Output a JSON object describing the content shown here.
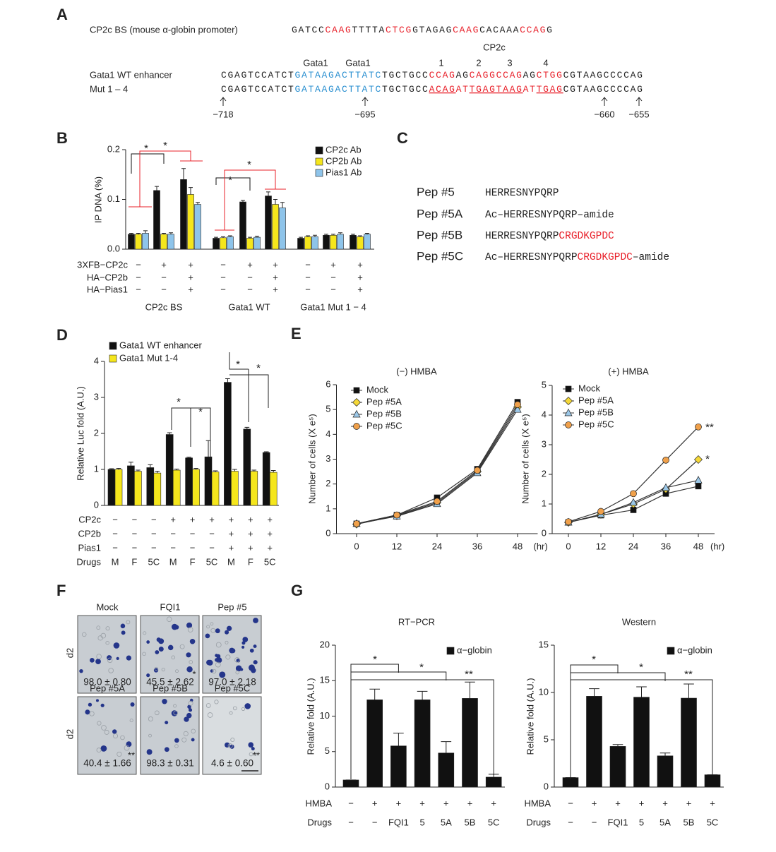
{
  "panel_a": {
    "letter": "A",
    "cp2c_bs": {
      "label": "CP2c BS (mouse α-globin promoter)",
      "segments": [
        {
          "text": "GATCC",
          "color": "#222222"
        },
        {
          "text": "CAAG",
          "color": "#e8202a"
        },
        {
          "text": "TTTTA",
          "color": "#222222"
        },
        {
          "text": "CTCG",
          "color": "#e8202a"
        },
        {
          "text": "GTAGAG",
          "color": "#222222"
        },
        {
          "text": "CAAG",
          "color": "#e8202a"
        },
        {
          "text": "CACAAA",
          "color": "#222222"
        },
        {
          "text": "CCAG",
          "color": "#e8202a"
        },
        {
          "text": "G",
          "color": "#222222"
        }
      ]
    },
    "site_labels": {
      "gata1_first": "Gata1",
      "gata1_second": "Gata1",
      "cp2c": "CP2c",
      "numbers": [
        "1",
        "2",
        "3",
        "4"
      ]
    },
    "wt": {
      "label": "Gata1 WT enhancer",
      "segments": [
        {
          "text": "CGAGTCCATCT",
          "color": "#222222"
        },
        {
          "text": "GATAAGACTTATC",
          "color": "#2a8fd0"
        },
        {
          "text": "TGCTGCC",
          "color": "#222222"
        },
        {
          "text": "CCAG",
          "color": "#e8202a"
        },
        {
          "text": "AG",
          "color": "#222222"
        },
        {
          "text": "CAGGCCAG",
          "color": "#e8202a"
        },
        {
          "text": "AG",
          "color": "#222222"
        },
        {
          "text": "CTGG",
          "color": "#e8202a"
        },
        {
          "text": "CGTAAGCCCCAG",
          "color": "#222222"
        }
      ]
    },
    "mut": {
      "label": "Mut 1 – 4",
      "segments": [
        {
          "text": "CGAGTCCATCT",
          "color": "#222222"
        },
        {
          "text": "GATAAGACTTATC",
          "color": "#2a8fd0"
        },
        {
          "text": "TGCTGCC",
          "color": "#222222"
        },
        {
          "text": "ACAG",
          "color": "#e8202a",
          "underline": true
        },
        {
          "text": "AT",
          "color": "#e8202a"
        },
        {
          "text": "TGAG",
          "color": "#e8202a",
          "underline": true
        },
        {
          "text": "TAAG",
          "color": "#e8202a",
          "underline": true
        },
        {
          "text": "AT",
          "color": "#e8202a"
        },
        {
          "text": "TGAG",
          "color": "#e8202a",
          "underline": true
        },
        {
          "text": "CGTAAGCCCCAG",
          "color": "#222222"
        }
      ]
    },
    "positions": [
      "−718",
      "−695",
      "−660",
      "−655"
    ]
  },
  "panel_c": {
    "letter": "C",
    "peptides": [
      {
        "name": "Pep #5",
        "segments": [
          {
            "text": "HERRESNYPQRP",
            "color": "#222222"
          }
        ]
      },
      {
        "name": "Pep #5A",
        "segments": [
          {
            "text": "Ac–",
            "color": "#222222"
          },
          {
            "text": "HERRESNYPQRP",
            "color": "#222222"
          },
          {
            "text": "–amide",
            "color": "#222222"
          }
        ]
      },
      {
        "name": "Pep #5B",
        "segments": [
          {
            "text": "HERRESNYPQRP",
            "color": "#222222"
          },
          {
            "text": "CRGDKGPDC",
            "color": "#e8202a"
          }
        ]
      },
      {
        "name": "Pep #5C",
        "segments": [
          {
            "text": "Ac–",
            "color": "#222222"
          },
          {
            "text": "HERRESNYPQRP",
            "color": "#222222"
          },
          {
            "text": "CRGDKGPDC",
            "color": "#e8202a"
          },
          {
            "text": "–amide",
            "color": "#222222"
          }
        ]
      }
    ]
  },
  "panel_f": {
    "letter": "F",
    "row_labels": [
      "d2",
      "d2"
    ],
    "images": [
      {
        "label": "Mock",
        "value": "98.0 ± 0.80"
      },
      {
        "label": "FQI1",
        "value": "45.5 ± 2.62",
        "mark": "*"
      },
      {
        "label": "Pep #5",
        "value": "97.0 ± 2.18"
      },
      {
        "label": "Pep #5A",
        "value": "40.4 ± 1.66",
        "mark": "**"
      },
      {
        "label": "Pep #5B",
        "value": "98.3 ± 0.31"
      },
      {
        "label": "Pep #5C",
        "value": "4.6 ± 0.60",
        "mark": "**"
      }
    ]
  },
  "chart_data": [
    {
      "type": "bar",
      "panel": "B",
      "ylabel": "IP DNA (%)",
      "ylim": [
        0,
        0.2
      ],
      "yticks": [
        {
          "value": 0,
          "label": "0.0"
        },
        0.1,
        0.2
      ],
      "series": [
        {
          "name": "CP2c Ab",
          "color": "#111111",
          "values": [
            0.03,
            0.118,
            0.14,
            0.022,
            0.095,
            0.107,
            0.022,
            0.028,
            0.028
          ],
          "errors": [
            0.002,
            0.008,
            0.022,
            0.002,
            0.003,
            0.008,
            0.002,
            0.002,
            0.002
          ]
        },
        {
          "name": "CP2b Ab",
          "color": "#f5e61c",
          "values": [
            0.03,
            0.03,
            0.11,
            0.023,
            0.022,
            0.09,
            0.025,
            0.028,
            0.025
          ],
          "errors": [
            0.002,
            0.002,
            0.014,
            0.002,
            0.002,
            0.01,
            0.002,
            0.002,
            0.002
          ]
        },
        {
          "name": "Pias1 Ab",
          "color": "#8ec4ea",
          "values": [
            0.032,
            0.03,
            0.09,
            0.025,
            0.024,
            0.083,
            0.025,
            0.03,
            0.03
          ],
          "errors": [
            0.005,
            0.003,
            0.004,
            0.002,
            0.002,
            0.011,
            0.003,
            0.003,
            0.002
          ]
        }
      ],
      "conditions": [
        {
          "name": "3XFB−CP2c",
          "signs": [
            "−",
            "+",
            "+",
            "−",
            "+",
            "+",
            "−",
            "+",
            "+"
          ]
        },
        {
          "name": "HA−CP2b",
          "signs": [
            "−",
            "−",
            "+",
            "−",
            "−",
            "+",
            "−",
            "−",
            "+"
          ]
        },
        {
          "name": "HA−Pias1",
          "signs": [
            "−",
            "−",
            "+",
            "−",
            "−",
            "+",
            "−",
            "−",
            "+"
          ]
        }
      ],
      "groups": [
        "CP2c BS",
        "Gata1 WT",
        "Gata1 Mut 1 − 4"
      ],
      "annotations": [
        {
          "text": "*",
          "color": "#111111"
        },
        {
          "text": "*",
          "color": "#e8202a"
        },
        {
          "text": "*",
          "color": "#111111"
        },
        {
          "text": "*",
          "color": "#e8202a"
        }
      ]
    },
    {
      "type": "bar",
      "panel": "D",
      "ylabel": "Relative Luc fold (A.U.)",
      "ylim": [
        0,
        4
      ],
      "yticks": [
        0,
        1,
        2,
        3,
        4
      ],
      "series": [
        {
          "name": "Gata1 WT enhancer",
          "color": "#111111",
          "values": [
            1.0,
            1.1,
            1.05,
            1.97,
            1.32,
            1.35,
            3.42,
            2.12,
            1.47
          ],
          "errors": [
            0.02,
            0.1,
            0.08,
            0.05,
            0.02,
            0.45,
            0.1,
            0.05,
            0.02
          ]
        },
        {
          "name": "Gata1 Mut 1-4",
          "color": "#f5e61c",
          "values": [
            1.0,
            0.95,
            0.9,
            0.98,
            1.0,
            0.93,
            0.95,
            0.95,
            0.92
          ],
          "errors": [
            0.03,
            0.03,
            0.05,
            0.03,
            0.03,
            0.03,
            0.05,
            0.03,
            0.05
          ]
        }
      ],
      "conditions": [
        {
          "name": "CP2c",
          "signs": [
            "−",
            "−",
            "−",
            "+",
            "+",
            "+",
            "+",
            "+",
            "+"
          ]
        },
        {
          "name": "CP2b",
          "signs": [
            "−",
            "−",
            "−",
            "−",
            "−",
            "−",
            "+",
            "+",
            "+"
          ]
        },
        {
          "name": "Pias1",
          "signs": [
            "−",
            "−",
            "−",
            "−",
            "−",
            "−",
            "+",
            "+",
            "+"
          ]
        },
        {
          "name": "Drugs",
          "signs": [
            "M",
            "F",
            "5C",
            "M",
            "F",
            "5C",
            "M",
            "F",
            "5C"
          ]
        }
      ],
      "annotations": [
        {
          "text": "*",
          "color": "#e8202a"
        },
        {
          "text": "*",
          "color": "#e8202a"
        },
        {
          "text": "*",
          "color": "#e8202a"
        },
        {
          "text": "*",
          "color": "#e8202a"
        }
      ]
    },
    {
      "type": "line",
      "panel": "E",
      "title": "(−) HMBA",
      "ylabel": "Number of cells (X e⁵)",
      "x_unit": "(hr)",
      "x": [
        0,
        12,
        24,
        36,
        48
      ],
      "xlim": [
        -6,
        54
      ],
      "xticks": [
        0,
        12,
        24,
        36,
        48
      ],
      "ylim": [
        0,
        6
      ],
      "yticks": [
        0,
        1,
        2,
        3,
        4,
        5,
        6
      ],
      "series": [
        {
          "name": "Mock",
          "color": "#111111",
          "marker": "square",
          "values": [
            0.4,
            0.75,
            1.45,
            2.6,
            5.3
          ]
        },
        {
          "name": "Pep #5A",
          "color": "#f5d838",
          "marker": "diamond",
          "values": [
            0.38,
            0.72,
            1.25,
            2.5,
            5.1
          ]
        },
        {
          "name": "Pep #5B",
          "color": "#9cc8e8",
          "marker": "triangle",
          "values": [
            0.4,
            0.7,
            1.2,
            2.45,
            5.0
          ]
        },
        {
          "name": "Pep #5C",
          "color": "#f0a04a",
          "marker": "circle",
          "values": [
            0.4,
            0.75,
            1.3,
            2.55,
            5.2
          ]
        }
      ]
    },
    {
      "type": "line",
      "title": "(+) HMBA",
      "ylabel": "Number of cells (X e⁵)",
      "x_unit": "(hr)",
      "x": [
        0,
        12,
        24,
        36,
        48
      ],
      "xlim": [
        -6,
        54
      ],
      "xticks": [
        0,
        12,
        24,
        36,
        48
      ],
      "ylim": [
        0,
        5
      ],
      "yticks": [
        0,
        1,
        2,
        3,
        4,
        5
      ],
      "series": [
        {
          "name": "Mock",
          "color": "#111111",
          "marker": "square",
          "values": [
            0.38,
            0.62,
            0.8,
            1.35,
            1.6
          ]
        },
        {
          "name": "Pep #5A",
          "color": "#f5d838",
          "marker": "diamond",
          "values": [
            0.38,
            0.65,
            1.0,
            1.5,
            2.5
          ]
        },
        {
          "name": "Pep #5B",
          "color": "#9cc8e8",
          "marker": "triangle",
          "values": [
            0.38,
            0.65,
            1.05,
            1.55,
            1.8
          ]
        },
        {
          "name": "Pep #5C",
          "color": "#f0a04a",
          "marker": "circle",
          "values": [
            0.4,
            0.75,
            1.35,
            2.48,
            3.6
          ]
        }
      ],
      "annotations": [
        {
          "text": "**",
          "color": "#e8202a"
        },
        {
          "text": "*",
          "color": "#e8202a"
        }
      ]
    },
    {
      "type": "bar",
      "panel": "G",
      "title": "RT−PCR",
      "ylabel": "Relative fold (A.U.)",
      "ylim": [
        0,
        20
      ],
      "yticks": [
        0,
        5,
        10,
        15,
        20
      ],
      "series": [
        {
          "name": "α−globin",
          "color": "#111111",
          "values": [
            1.0,
            12.3,
            5.8,
            12.3,
            4.8,
            12.5,
            1.4
          ],
          "errors": [
            0,
            1.5,
            1.8,
            1.2,
            1.6,
            2.3,
            0.4
          ]
        }
      ],
      "conditions": [
        {
          "name": "HMBA",
          "signs": [
            "−",
            "+",
            "+",
            "+",
            "+",
            "+",
            "+"
          ]
        },
        {
          "name": "Drugs",
          "signs": [
            "−",
            "−",
            "FQI1",
            "5",
            "5A",
            "5B",
            "5C"
          ]
        }
      ],
      "annotations": [
        {
          "text": "*",
          "color": "#e8202a"
        },
        {
          "text": "*",
          "color": "#e8202a"
        },
        {
          "text": "**",
          "color": "#e8202a"
        }
      ]
    },
    {
      "type": "bar",
      "title": "Western",
      "ylabel": "Relative fold (A.U.)",
      "ylim": [
        0,
        15
      ],
      "yticks": [
        0,
        5,
        10,
        15
      ],
      "series": [
        {
          "name": "α−globin",
          "color": "#111111",
          "values": [
            1.0,
            9.6,
            4.3,
            9.5,
            3.3,
            9.4,
            1.3
          ],
          "errors": [
            0,
            0.8,
            0.2,
            1.1,
            0.3,
            1.5,
            0
          ]
        }
      ],
      "conditions": [
        {
          "name": "HMBA",
          "signs": [
            "−",
            "+",
            "+",
            "+",
            "+",
            "+",
            "+"
          ]
        },
        {
          "name": "Drugs",
          "signs": [
            "−",
            "−",
            "FQI1",
            "5",
            "5A",
            "5B",
            "5C"
          ]
        }
      ],
      "annotations": [
        {
          "text": "*",
          "color": "#e8202a"
        },
        {
          "text": "*",
          "color": "#e8202a"
        },
        {
          "text": "**",
          "color": "#e8202a"
        }
      ]
    }
  ]
}
